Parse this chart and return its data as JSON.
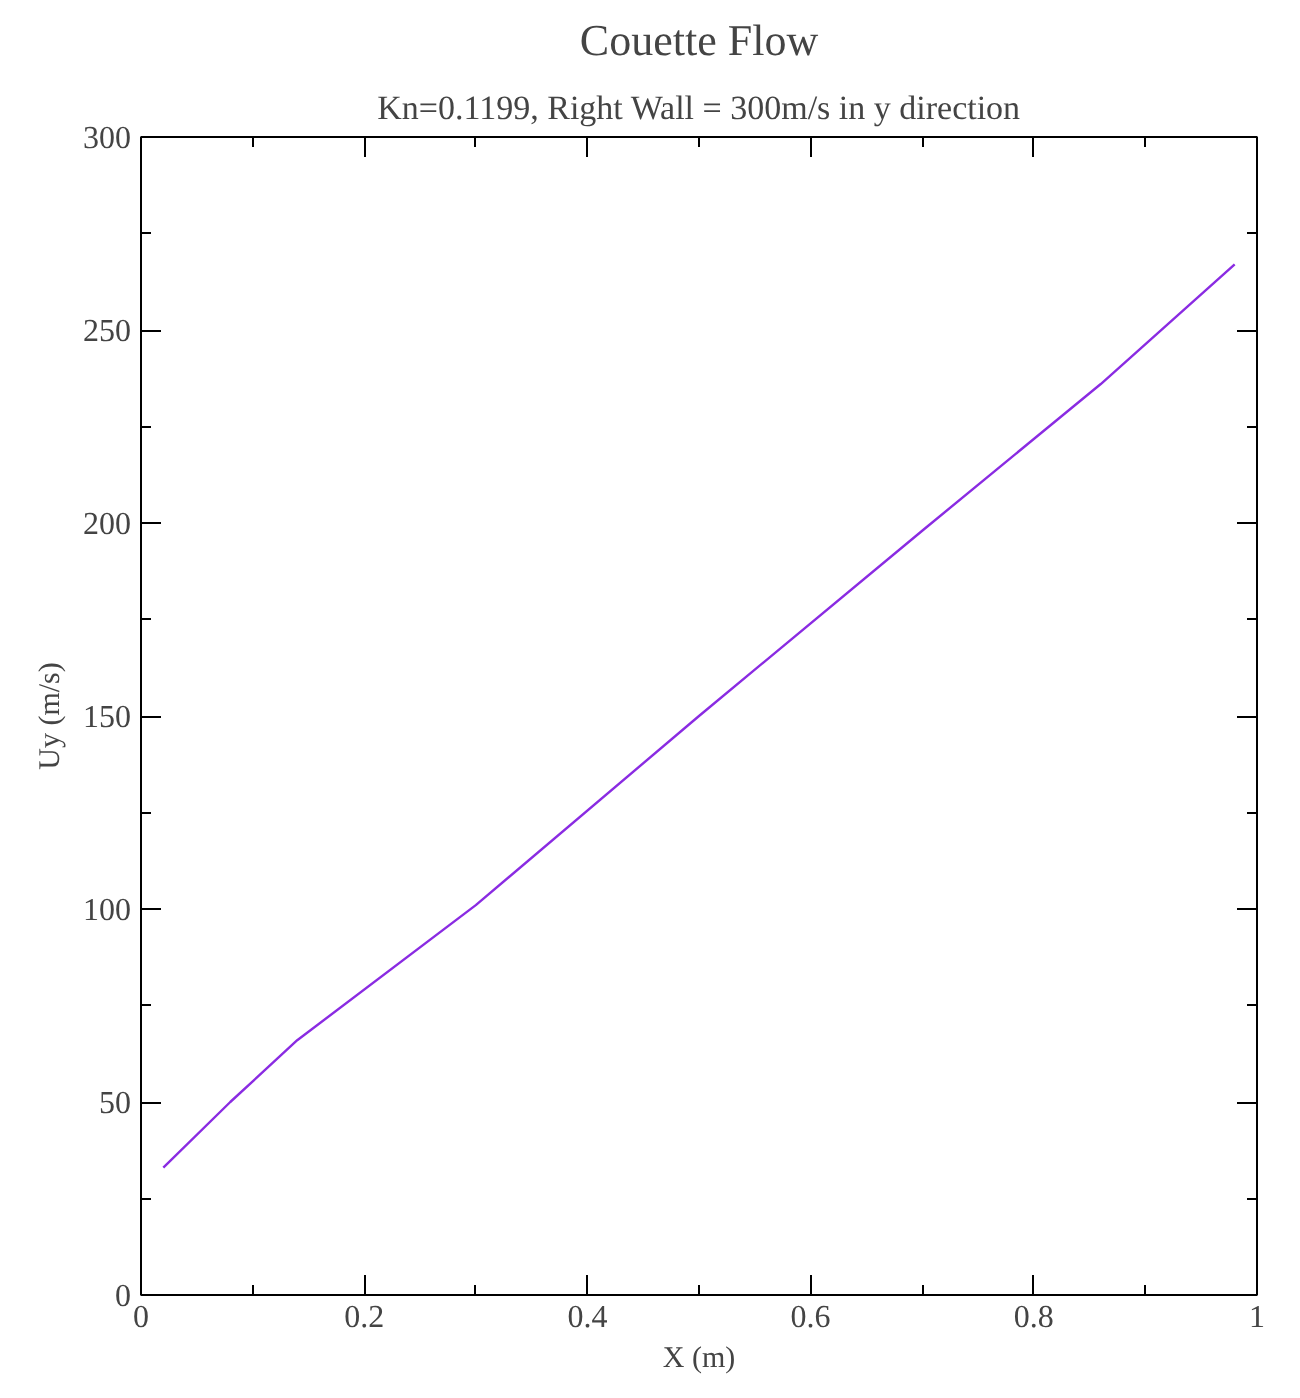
{
  "chart_data": {
    "type": "line",
    "title": "Couette Flow",
    "subtitle": "Kn=0.1199, Right Wall = 300m/s in y direction",
    "xlabel": "X (m)",
    "ylabel": "Uy (m/s)",
    "x": [
      0.02,
      0.08,
      0.14,
      0.3,
      0.5,
      0.7,
      0.86,
      0.98
    ],
    "series": [
      {
        "color": "#8a2be2",
        "values": [
          33,
          50,
          66,
          101,
          150,
          198,
          236,
          267
        ]
      }
    ],
    "xlim": [
      0,
      1
    ],
    "ylim": [
      0,
      300
    ],
    "xticks": [
      0,
      {
        "value": 0.1,
        "label": null
      },
      0.2,
      {
        "value": 0.3,
        "label": null
      },
      0.4,
      {
        "value": 0.5,
        "label": null
      },
      0.6,
      {
        "value": 0.7,
        "label": null
      },
      0.8,
      {
        "value": 0.9,
        "label": null
      },
      1
    ],
    "yticks": [
      0,
      {
        "value": 25,
        "label": null
      },
      50,
      {
        "value": 75,
        "label": null
      },
      100,
      {
        "value": 125,
        "label": null
      },
      150,
      {
        "value": 175,
        "label": null
      },
      200,
      {
        "value": 225,
        "label": null
      },
      250,
      {
        "value": 275,
        "label": null
      },
      300
    ],
    "grid": false,
    "line_style": "solid"
  }
}
